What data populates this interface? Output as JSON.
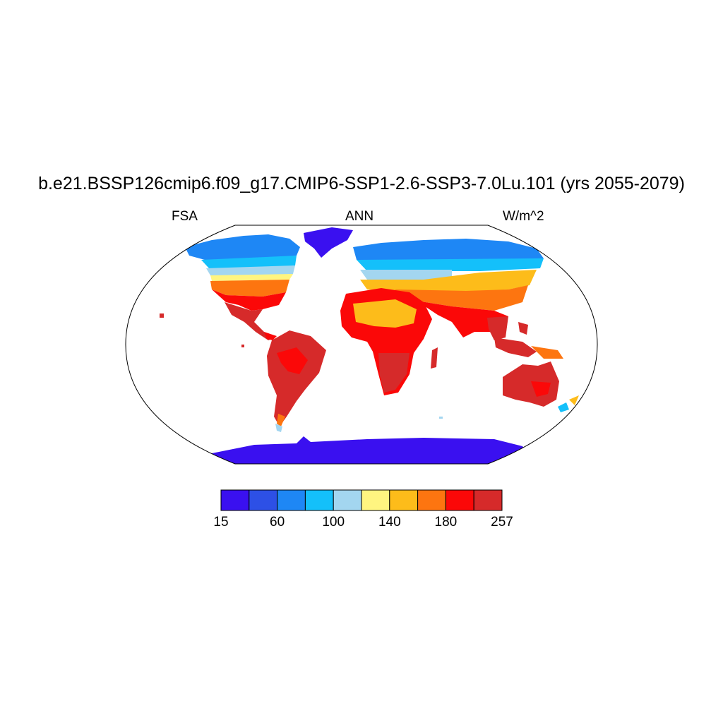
{
  "title": "b.e21.BSSP126cmip6.f09_g17.CMIP6-SSP1-2.6-SSP3-7.0Lu.101 (yrs 2055-2079)",
  "left_label": "FSA",
  "center_label": "ANN",
  "right_label": "W/m^2",
  "colorbar": {
    "colors": [
      "#3a10f0",
      "#2d50e6",
      "#1e87f5",
      "#14c0fa",
      "#a3d6f0",
      "#fff580",
      "#fdbc1a",
      "#fd7510",
      "#fb0808",
      "#d62a2a"
    ],
    "ticks": [
      {
        "label": "15",
        "index": 0
      },
      {
        "label": "60",
        "index": 2
      },
      {
        "label": "100",
        "index": 4
      },
      {
        "label": "140",
        "index": 6
      },
      {
        "label": "180",
        "index": 8
      },
      {
        "label": "257",
        "index": 10
      }
    ]
  }
}
